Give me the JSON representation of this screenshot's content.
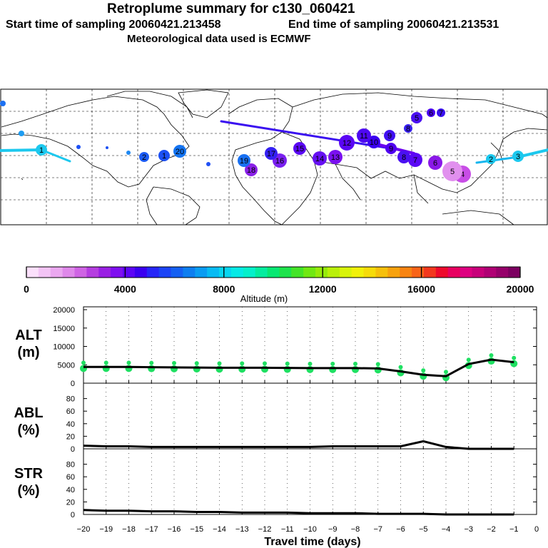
{
  "header": {
    "title": "Retroplume summary for c130_060421",
    "start_label": "Start time of sampling 20060421.213458",
    "end_label": "End time of sampling 20060421.213531",
    "met_label": "Meteorological data used is ECMWF"
  },
  "map": {
    "day_labels": [
      "1",
      "2",
      "3",
      "4",
      "5",
      "6",
      "7",
      "8",
      "9",
      "10",
      "11",
      "12",
      "13",
      "14",
      "15",
      "16",
      "17",
      "18",
      "19",
      "20"
    ]
  },
  "chart_data": [
    {
      "type": "colorbar",
      "xlabel": "Altitude (m)",
      "range": [
        0,
        20000
      ],
      "ticks": [
        "0",
        "4000",
        "8000",
        "12000",
        "16000",
        "20000"
      ],
      "colors": [
        "#fbe0fb",
        "#f3c4f5",
        "#eba8f0",
        "#df88ea",
        "#cf64e4",
        "#b53ee0",
        "#9a20e4",
        "#7f0ff0",
        "#5c05f5",
        "#3a00f0",
        "#2626f8",
        "#1c44f6",
        "#1560f2",
        "#0e7ef0",
        "#0a9cf2",
        "#08bbf3",
        "#07d6f0",
        "#06eae6",
        "#05f0cb",
        "#04ed9f",
        "#08e873",
        "#1ee34c",
        "#44e428",
        "#70e812",
        "#96eb0a",
        "#baf00a",
        "#d9f40a",
        "#f1f10a",
        "#f6dc0a",
        "#f6c00c",
        "#f7a20e",
        "#f88412",
        "#f86418",
        "#f2381e",
        "#ee0a2c",
        "#e80060",
        "#de0080",
        "#c8007a",
        "#b00074",
        "#96006a",
        "#7c0060"
      ]
    },
    {
      "type": "line",
      "name": "ALT",
      "ylabel": "ALT",
      "unit": "(m)",
      "ylim": [
        0,
        20000
      ],
      "yticks": [
        0,
        5000,
        10000,
        15000,
        20000
      ],
      "x": [
        -20,
        -19,
        -18,
        -17,
        -16,
        -15,
        -14,
        -13,
        -12,
        -11,
        -10,
        -9,
        -8,
        -7,
        -6,
        -5,
        -4,
        -3,
        -2,
        -1
      ],
      "values": [
        4400,
        4400,
        4400,
        4350,
        4300,
        4250,
        4200,
        4200,
        4200,
        4150,
        4100,
        4100,
        4100,
        4000,
        3200,
        2300,
        1900,
        5200,
        6400,
        5700
      ],
      "scatter_color": "#1fe062"
    },
    {
      "type": "line",
      "name": "ABL",
      "ylabel": "ABL",
      "unit": "(%)",
      "ylim": [
        0,
        100
      ],
      "yticks": [
        0,
        20,
        40,
        60,
        80
      ],
      "x": [
        -20,
        -19,
        -18,
        -17,
        -16,
        -15,
        -14,
        -13,
        -12,
        -11,
        -10,
        -9,
        -8,
        -7,
        -6,
        -5,
        -4,
        -3,
        -2,
        -1
      ],
      "values": [
        5,
        4,
        4,
        3,
        3,
        3,
        3,
        3,
        3,
        3,
        3,
        4,
        4,
        4,
        4,
        12,
        3,
        0,
        0,
        0
      ]
    },
    {
      "type": "line",
      "name": "STR",
      "ylabel": "STR",
      "unit": "(%)",
      "ylim": [
        0,
        100
      ],
      "yticks": [
        0,
        20,
        40,
        60,
        80
      ],
      "x": [
        -20,
        -19,
        -18,
        -17,
        -16,
        -15,
        -14,
        -13,
        -12,
        -11,
        -10,
        -9,
        -8,
        -7,
        -6,
        -5,
        -4,
        -3,
        -2,
        -1
      ],
      "values": [
        7,
        6,
        6,
        5,
        5,
        4,
        4,
        3,
        3,
        3,
        2,
        2,
        2,
        1,
        1,
        1,
        0,
        0,
        0,
        0
      ],
      "xlabel": "Travel time (days)",
      "xlim": [
        -20,
        0
      ],
      "xtick_labels": [
        "−20",
        "−19",
        "−18",
        "−17",
        "−16",
        "−15",
        "−14",
        "−13",
        "−12",
        "−11",
        "−10",
        "−9",
        "−8",
        "−7",
        "−6",
        "−5",
        "−4",
        "−3",
        "−2",
        "−1",
        "0"
      ]
    }
  ]
}
